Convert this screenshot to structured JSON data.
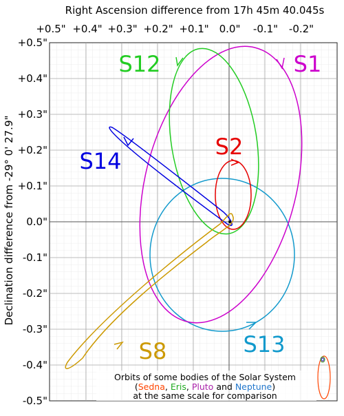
{
  "title_top": "Right Ascension difference from 17h 45m 40.045s",
  "ylabel": "Declination difference from -29° 0' 27.9\"",
  "x_ticks": [
    "+0.5\"",
    "+0.4\"",
    "+0.3\"",
    "+0.2\"",
    "+0.1\"",
    "0.0\"",
    "-0.1\"",
    "-0.2\""
  ],
  "y_ticks": [
    "+0.5\"",
    "+0.4\"",
    "+0.3\"",
    "+0.2\"",
    "+0.1\"",
    "0.0\"",
    "-0.1\"",
    "-0.2\"",
    "-0.3\"",
    "-0.4\"",
    "-0.5\""
  ],
  "stars": [
    {
      "label": "S1",
      "color": "#cc00cc"
    },
    {
      "label": "S2",
      "color": "#e60000"
    },
    {
      "label": "S12",
      "color": "#22cc22"
    },
    {
      "label": "S14",
      "color": "#0000e0"
    },
    {
      "label": "S8",
      "color": "#cc9900"
    },
    {
      "label": "S13",
      "color": "#1199cc"
    }
  ],
  "note": {
    "line1": "Orbits of some bodies of the Solar System",
    "sedna": "Sedna",
    "eris": "Eris",
    "pluto": "Pluto",
    "and": "and",
    "neptune": "Neptune",
    "line3": "at the same scale for comparison",
    "colors": {
      "sedna": "#ff4400",
      "eris": "#22aa22",
      "pluto": "#aa22aa",
      "neptune": "#2277cc"
    }
  }
}
